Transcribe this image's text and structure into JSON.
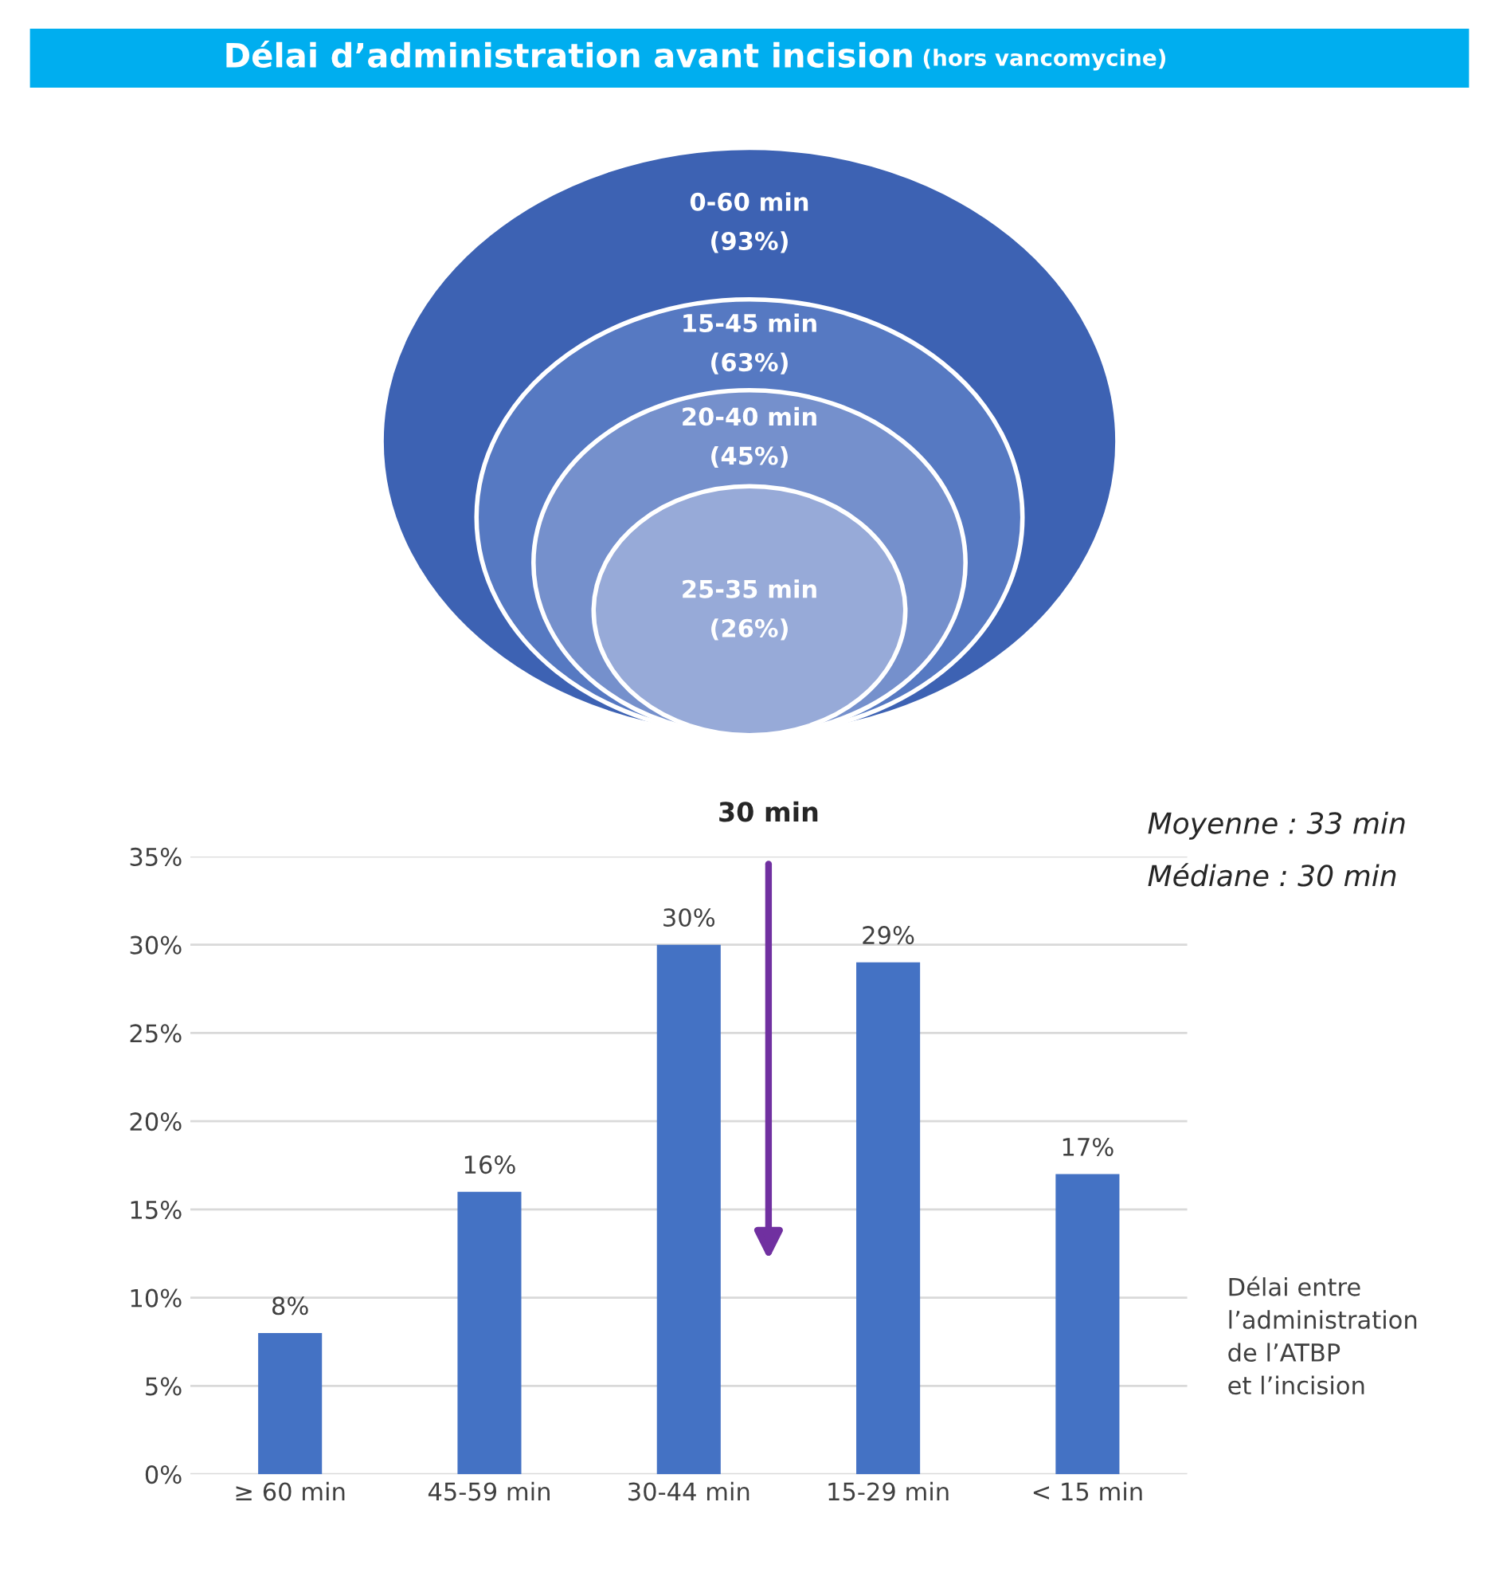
{
  "chart_data": [
    {
      "type": "other",
      "title": "Délai d’administration avant incision",
      "subtitle": "(hors vancomycine)",
      "categories": [
        "0-60 min",
        "15-45 min",
        "20-40 min",
        "25-35 min"
      ],
      "values": [
        93,
        63,
        45,
        26
      ],
      "value_labels": [
        "(93%)",
        "(63%)",
        "(45%)",
        "(26%)"
      ],
      "colors": [
        "#3d62b3",
        "#5679c2",
        "#7590cc",
        "#97aad8"
      ]
    },
    {
      "type": "bar",
      "categories": [
        "≥ 60 min",
        "45-59 min",
        "30-44 min",
        "15-29 min",
        "< 15 min"
      ],
      "values": [
        8,
        16,
        30,
        29,
        17
      ],
      "value_labels": [
        "8%",
        "16%",
        "30%",
        "29%",
        "17%"
      ],
      "color": "#4472c4",
      "xlabel": "Délai entre\nl’administration\nde l’ATBP\net l’incision",
      "annotations": [
        "30 min",
        "Moyenne : 33 min",
        "Médiane : 30 min"
      ],
      "ylim": [
        0,
        35
      ],
      "yticks": [
        {
          "value": 0,
          "label": "0%"
        },
        {
          "value": 5,
          "label": "5%"
        },
        {
          "value": 10,
          "label": "10%"
        },
        {
          "value": 15,
          "label": "15%"
        },
        {
          "value": 20,
          "label": "20%"
        },
        {
          "value": 25,
          "label": "25%"
        },
        {
          "value": 30,
          "label": "30%"
        },
        {
          "value": 35,
          "label": "35%"
        }
      ],
      "grid": "y",
      "legend": false
    }
  ]
}
